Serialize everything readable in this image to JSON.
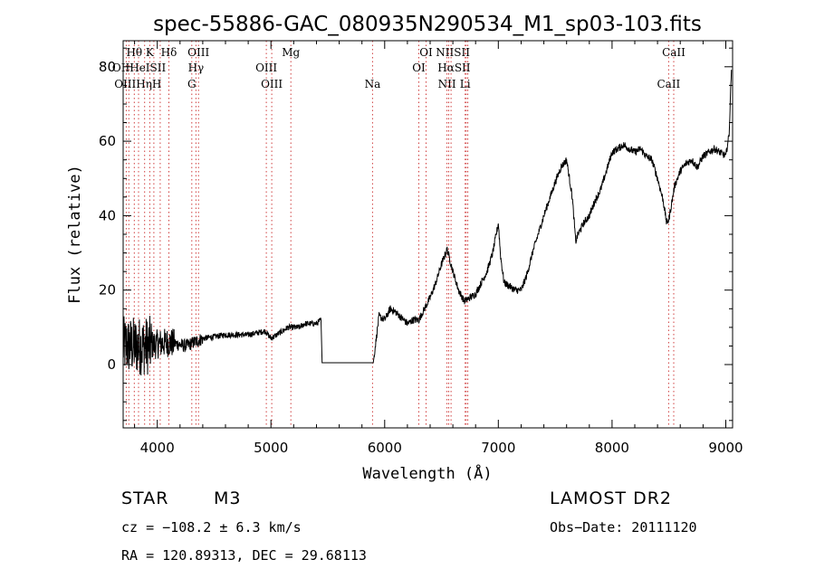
{
  "chart_data": {
    "type": "line",
    "title": "spec-55886-GAC_080935N290534_M1_sp03-103.fits",
    "xlabel": "Wavelength (Å)",
    "ylabel": "Flux (relative)",
    "xlim": [
      3700,
      9060
    ],
    "ylim": [
      -17,
      87
    ],
    "x_ticks": [
      4000,
      5000,
      6000,
      7000,
      8000,
      9000
    ],
    "y_ticks": [
      0,
      20,
      40,
      60,
      80
    ],
    "grid": false,
    "series": [
      {
        "x": [
          3700,
          3900,
          4100,
          4250,
          4400,
          4600,
          4800,
          4950,
          5000,
          5050,
          5150,
          5250,
          5300,
          5400,
          5440,
          5450,
          5900,
          5950,
          6000,
          6050,
          6100,
          6200,
          6250,
          6300,
          6400,
          6450,
          6500,
          6550,
          6600,
          6650,
          6700,
          6750,
          6800,
          6850,
          6900,
          6950,
          7000,
          7020,
          7050,
          7100,
          7150,
          7200,
          7250,
          7300,
          7400,
          7500,
          7550,
          7600,
          7650,
          7680,
          7700,
          7750,
          7800,
          7850,
          7900,
          7950,
          8000,
          8050,
          8100,
          8150,
          8200,
          8250,
          8300,
          8350,
          8400,
          8450,
          8480,
          8500,
          8550,
          8600,
          8650,
          8700,
          8750,
          8800,
          8850,
          8900,
          8950,
          9000,
          9030,
          9050
        ],
        "y": [
          5,
          5,
          6,
          5,
          7,
          8,
          8,
          9,
          7,
          8,
          10,
          10,
          11,
          11,
          12,
          0.5,
          0.5,
          13,
          12,
          15,
          14,
          11,
          12,
          12,
          18,
          22,
          27,
          31,
          25,
          20,
          17,
          18,
          19,
          22,
          25,
          30,
          38,
          29,
          22,
          21,
          20,
          20,
          24,
          30,
          40,
          49,
          53,
          55,
          45,
          33,
          35,
          38,
          40,
          44,
          47,
          52,
          57,
          58,
          59,
          58,
          57,
          58,
          56,
          55,
          50,
          44,
          38,
          39,
          48,
          52,
          54,
          55,
          53,
          56,
          57,
          58,
          57,
          56,
          62,
          80
        ]
      }
    ],
    "lines": [
      {
        "label": "Hθ",
        "x": 3798,
        "row": 0
      },
      {
        "label": "K",
        "x": 3934,
        "row": 0
      },
      {
        "label": "Hδ",
        "x": 4102,
        "row": 0
      },
      {
        "label": "OIII",
        "x": 4363,
        "row": 0
      },
      {
        "label": "Mg",
        "x": 5175,
        "row": 0
      },
      {
        "label": "OI",
        "x": 6364,
        "row": 0
      },
      {
        "label": "NIISII",
        "x": 6600,
        "row": 0
      },
      {
        "label": "CaII",
        "x": 8542,
        "row": 0
      },
      {
        "label": "OIIHeISII",
        "x": 3840,
        "row": 1
      },
      {
        "label": "Hγ",
        "x": 4340,
        "row": 1
      },
      {
        "label": "OIII",
        "x": 4959,
        "row": 1
      },
      {
        "label": "OI",
        "x": 6300,
        "row": 1
      },
      {
        "label": "HαSII",
        "x": 6610,
        "row": 1
      },
      {
        "label": "OIIIHηH",
        "x": 3830,
        "row": 2
      },
      {
        "label": "G",
        "x": 4304,
        "row": 2
      },
      {
        "label": "OIII",
        "x": 5007,
        "row": 2
      },
      {
        "label": "Na",
        "x": 5893,
        "row": 2
      },
      {
        "label": "NII",
        "x": 6548,
        "row": 2
      },
      {
        "label": "Li",
        "x": 6708,
        "row": 2
      },
      {
        "label": "CaII",
        "x": 8498,
        "row": 2
      }
    ],
    "line_marker_wavelengths": [
      3727,
      3750,
      3798,
      3835,
      3889,
      3934,
      3970,
      4026,
      4102,
      4304,
      4340,
      4363,
      4959,
      5007,
      5175,
      5893,
      6300,
      6364,
      6548,
      6563,
      6584,
      6708,
      6717,
      6731,
      8498,
      8542
    ]
  },
  "info": {
    "object_class": "STAR",
    "subclass": "M3",
    "survey": "LAMOST DR2",
    "velocity": "cz = −108.2 ± 6.3 km/s",
    "obs_date": "Obs−Date: 20111120",
    "coords": "RA = 120.89313, DEC =  29.68113"
  },
  "colors": {
    "line_marker": "#d04040",
    "spectrum": "#000000",
    "axes": "#000000"
  }
}
